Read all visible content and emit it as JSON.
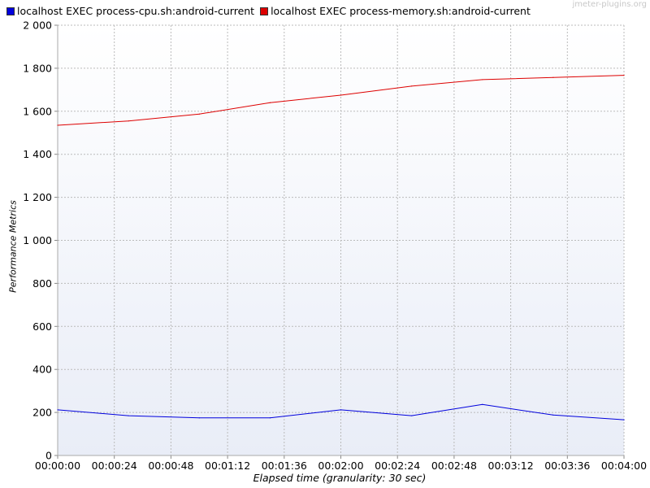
{
  "watermark": "jmeter-plugins.org",
  "colors": {
    "background_top": "#ffffff",
    "background_bottom": "#e9edf7",
    "grid": "#bbbbbb"
  },
  "chart_data": {
    "type": "line",
    "title": "",
    "xlabel": "Elapsed time (granularity: 30 sec)",
    "ylabel": "Performance Metrics",
    "x_tick_labels": [
      "00:00:00",
      "00:00:24",
      "00:00:48",
      "00:01:12",
      "00:01:36",
      "00:02:00",
      "00:02:24",
      "00:02:48",
      "00:03:12",
      "00:03:36",
      "00:04:00"
    ],
    "y_tick_labels": [
      "0",
      "200",
      "400",
      "600",
      "800",
      "1 000",
      "1 200",
      "1 400",
      "1 600",
      "1 800",
      "2 000"
    ],
    "xlim_seconds": [
      0,
      240
    ],
    "ylim": [
      0,
      2000
    ],
    "grid": true,
    "legend_position": "top-left",
    "x_seconds": [
      0,
      30,
      60,
      90,
      120,
      150,
      180,
      210,
      240
    ],
    "series": [
      {
        "name": "localhost EXEC process-cpu.sh:android-current",
        "color": "#0000dd",
        "values": [
          212,
          185,
          175,
          175,
          212,
          185,
          237,
          188,
          166
        ]
      },
      {
        "name": "localhost EXEC process-memory.sh:android-current",
        "color": "#dd0000",
        "values": [
          1535,
          1555,
          1587,
          1640,
          1675,
          1717,
          1747,
          1757,
          1767
        ]
      }
    ]
  }
}
